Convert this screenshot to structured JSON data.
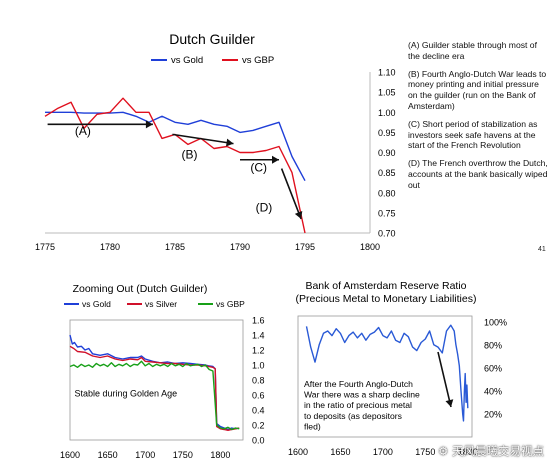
{
  "slide": {
    "number": "41"
  },
  "notes": [
    "(A) Guilder stable through most of the decline era",
    "(B) Fourth Anglo-Dutch War leads to money printing and initial pressure on the guilder (run on the Bank of Amsterdam)",
    "(C) Short period of stabilization as investors seek safe havens at the start of the French Revolution",
    "(D) The French overthrow the Dutch, accounts at the bank basically wiped out"
  ],
  "watermark": "天风晨曦交易视点",
  "colors": {
    "gold": "#1f3fd8",
    "gbp": "#e0101e",
    "silver": "#d0102a",
    "gbp_green": "#18a018",
    "reserve": "#2a5ad6",
    "arrow": "#111111"
  },
  "chart_data": [
    {
      "type": "line",
      "title": "Dutch Guilder",
      "xlim": [
        1775,
        1800
      ],
      "ylim": [
        0.7,
        1.1
      ],
      "x_ticks": [
        "1775",
        "1780",
        "1785",
        "1790",
        "1795",
        "1800"
      ],
      "y_ticks": [
        "1.10",
        "1.05",
        "1.00",
        "0.95",
        "0.90",
        "0.85",
        "0.80",
        "0.75",
        "0.70"
      ],
      "y_axis_side": "right",
      "legend_position": "top-center",
      "series": [
        {
          "name": "vs Gold",
          "color_key": "gold",
          "x": [
            1775,
            1776,
            1777,
            1778,
            1779,
            1780,
            1781,
            1782,
            1783,
            1784,
            1785,
            1786,
            1787,
            1788,
            1789,
            1790,
            1791,
            1792,
            1793,
            1794,
            1795
          ],
          "y": [
            1.0,
            1.0,
            1.0,
            0.998,
            0.998,
            0.998,
            1.0,
            0.99,
            0.975,
            0.99,
            0.975,
            0.97,
            0.98,
            0.97,
            0.965,
            0.95,
            0.955,
            0.965,
            0.975,
            0.89,
            0.83
          ]
        },
        {
          "name": "vs GBP",
          "color_key": "gbp",
          "x": [
            1775,
            1776,
            1777,
            1778,
            1779,
            1780,
            1781,
            1782,
            1783,
            1784,
            1785,
            1786,
            1787,
            1788,
            1789,
            1790,
            1791,
            1792,
            1793,
            1794,
            1795
          ],
          "y": [
            0.99,
            1.01,
            1.025,
            0.96,
            0.995,
            1.0,
            1.035,
            1.0,
            1.0,
            0.935,
            0.945,
            0.92,
            0.935,
            0.91,
            0.915,
            0.9,
            0.9,
            0.905,
            0.915,
            0.85,
            0.7
          ]
        }
      ],
      "annotations": [
        {
          "label": "(A)",
          "x": 1777.3,
          "y": 0.943,
          "from": [
            1775.2,
            0.97
          ],
          "to": [
            1783.3,
            0.97
          ]
        },
        {
          "label": "(B)",
          "x": 1785.5,
          "y": 0.885,
          "from": [
            1784.8,
            0.945
          ],
          "to": [
            1789.5,
            0.922
          ]
        },
        {
          "label": "(C)",
          "x": 1790.8,
          "y": 0.853,
          "from": [
            1790.0,
            0.882
          ],
          "to": [
            1793.0,
            0.882
          ]
        },
        {
          "label": "(D)",
          "x": 1791.2,
          "y": 0.753,
          "from": [
            1793.2,
            0.86
          ],
          "to": [
            1794.7,
            0.735
          ]
        }
      ]
    },
    {
      "type": "line",
      "title": "Zooming Out (Dutch Guilder)",
      "xlim": [
        1600,
        1830
      ],
      "ylim": [
        0,
        1.6
      ],
      "x_ticks": [
        "1600",
        "1650",
        "1700",
        "1750",
        "1800"
      ],
      "y_ticks": [
        "1.6",
        "1.4",
        "1.2",
        "1.0",
        "0.8",
        "0.6",
        "0.4",
        "0.2",
        "0.0"
      ],
      "y_axis_side": "right",
      "legend_position": "top",
      "series": [
        {
          "name": "vs Gold",
          "color_key": "gold",
          "x": [
            1600,
            1603,
            1606,
            1610,
            1615,
            1620,
            1625,
            1630,
            1640,
            1650,
            1660,
            1670,
            1680,
            1690,
            1695,
            1700,
            1710,
            1720,
            1730,
            1740,
            1750,
            1760,
            1770,
            1780,
            1784,
            1790,
            1793,
            1795,
            1800,
            1805,
            1810,
            1815,
            1820,
            1825
          ],
          "y": [
            1.4,
            1.28,
            1.3,
            1.24,
            1.25,
            1.2,
            1.22,
            1.15,
            1.13,
            1.15,
            1.1,
            1.08,
            1.1,
            1.1,
            1.12,
            1.08,
            1.05,
            1.03,
            1.04,
            1.02,
            1.03,
            1.02,
            1.01,
            1.0,
            0.99,
            0.98,
            0.95,
            0.22,
            0.18,
            0.16,
            0.14,
            0.16,
            0.15,
            0.16
          ]
        },
        {
          "name": "vs Silver",
          "color_key": "silver",
          "x": [
            1600,
            1605,
            1610,
            1620,
            1630,
            1640,
            1650,
            1660,
            1670,
            1680,
            1690,
            1695,
            1700,
            1710,
            1720,
            1730,
            1740,
            1750,
            1760,
            1770,
            1780,
            1790,
            1793,
            1795,
            1800,
            1805,
            1810,
            1815,
            1820,
            1825
          ],
          "y": [
            1.25,
            1.22,
            1.18,
            1.17,
            1.12,
            1.1,
            1.12,
            1.08,
            1.06,
            1.08,
            1.07,
            1.1,
            1.05,
            1.04,
            1.03,
            1.02,
            1.02,
            1.01,
            1.0,
            1.0,
            0.99,
            0.97,
            0.95,
            0.18,
            0.15,
            0.14,
            0.13,
            0.14,
            0.15,
            0.16
          ]
        },
        {
          "name": "vs GBP",
          "color_key": "gbp_green",
          "x": [
            1600,
            1605,
            1610,
            1615,
            1620,
            1625,
            1630,
            1635,
            1640,
            1645,
            1650,
            1655,
            1660,
            1665,
            1670,
            1675,
            1680,
            1685,
            1690,
            1695,
            1700,
            1705,
            1710,
            1715,
            1720,
            1725,
            1730,
            1735,
            1740,
            1745,
            1750,
            1755,
            1760,
            1765,
            1770,
            1775,
            1780,
            1785,
            1790,
            1795,
            1800,
            1805,
            1810,
            1815,
            1820,
            1825
          ],
          "y": [
            0.98,
            1.0,
            0.97,
            1.01,
            0.98,
            1.0,
            0.97,
            1.02,
            0.99,
            1.01,
            0.98,
            1.03,
            0.98,
            1.01,
            0.99,
            1.02,
            0.98,
            1.01,
            1.0,
            1.05,
            0.99,
            1.02,
            0.98,
            1.01,
            0.99,
            1.01,
            0.98,
            1.02,
            0.99,
            1.01,
            0.98,
            1.02,
            0.99,
            1.0,
            1.01,
            0.98,
            1.0,
            0.94,
            0.92,
            0.2,
            0.16,
            0.15,
            0.17,
            0.14,
            0.16,
            0.15
          ]
        }
      ],
      "annotations": [
        {
          "label": "Stable during Golden Age",
          "x": 1606,
          "y": 0.58
        }
      ]
    },
    {
      "type": "line",
      "title": "Bank of Amsterdam Reserve Ratio",
      "subtitle": "(Precious Metal to Monetary Liabilities)",
      "xlim": [
        1600,
        1805
      ],
      "ylim": [
        0,
        1.05
      ],
      "x_ticks": [
        "1600",
        "1650",
        "1700",
        "1750",
        "1800"
      ],
      "y_ticks": [
        "100%",
        "80%",
        "60%",
        "40%",
        "20%"
      ],
      "y_tick_values": [
        1.0,
        0.8,
        0.6,
        0.4,
        0.2
      ],
      "y_axis_side": "right",
      "series": [
        {
          "name": "",
          "color_key": "reserve",
          "x": [
            1610,
            1615,
            1620,
            1625,
            1630,
            1635,
            1640,
            1645,
            1650,
            1655,
            1660,
            1665,
            1670,
            1675,
            1680,
            1685,
            1690,
            1695,
            1700,
            1705,
            1710,
            1715,
            1720,
            1725,
            1730,
            1735,
            1740,
            1745,
            1750,
            1755,
            1760,
            1765,
            1770,
            1775,
            1780,
            1784,
            1786,
            1788,
            1790,
            1792,
            1794,
            1795,
            1796,
            1797,
            1798,
            1799,
            1800
          ],
          "y": [
            0.96,
            0.78,
            0.65,
            0.8,
            0.9,
            0.92,
            0.88,
            0.94,
            0.9,
            0.82,
            0.88,
            0.91,
            0.86,
            0.9,
            0.84,
            0.89,
            0.91,
            0.95,
            0.88,
            0.86,
            0.92,
            0.84,
            0.82,
            0.9,
            0.87,
            0.78,
            0.75,
            0.82,
            0.85,
            0.92,
            0.8,
            0.78,
            0.73,
            0.92,
            0.97,
            0.92,
            0.8,
            0.72,
            0.62,
            0.4,
            0.2,
            0.14,
            0.4,
            0.55,
            0.3,
            0.45,
            0.25
          ]
        }
      ],
      "annotations": [
        {
          "label": "After the Fourth Anglo-Dutch War there was a sharp decline in the ratio of precious metal to deposits (as depositors fled)",
          "x": 1612,
          "y": 0.35
        }
      ]
    }
  ]
}
